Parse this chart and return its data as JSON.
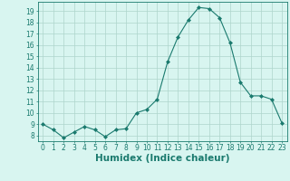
{
  "xlabel": "Humidex (Indice chaleur)",
  "ylabel": "",
  "x_values": [
    0,
    1,
    2,
    3,
    4,
    5,
    6,
    7,
    8,
    9,
    10,
    11,
    12,
    13,
    14,
    15,
    16,
    17,
    18,
    19,
    20,
    21,
    22,
    23
  ],
  "y_values": [
    9,
    8.5,
    7.8,
    8.3,
    8.8,
    8.5,
    7.9,
    8.5,
    8.6,
    10.0,
    10.3,
    11.2,
    14.5,
    16.7,
    18.2,
    19.3,
    19.2,
    18.4,
    16.2,
    12.7,
    11.5,
    11.5,
    11.2,
    9.1
  ],
  "line_color": "#1a7a6e",
  "marker": "D",
  "marker_size": 2.0,
  "background_color": "#d8f5f0",
  "grid_color": "#aed4cc",
  "ylim": [
    7.5,
    19.8
  ],
  "yticks": [
    8,
    9,
    10,
    11,
    12,
    13,
    14,
    15,
    16,
    17,
    18,
    19
  ],
  "xlim": [
    -0.5,
    23.5
  ],
  "xticks": [
    0,
    1,
    2,
    3,
    4,
    5,
    6,
    7,
    8,
    9,
    10,
    11,
    12,
    13,
    14,
    15,
    16,
    17,
    18,
    19,
    20,
    21,
    22,
    23
  ],
  "tick_fontsize": 5.5,
  "xlabel_fontsize": 7.5
}
